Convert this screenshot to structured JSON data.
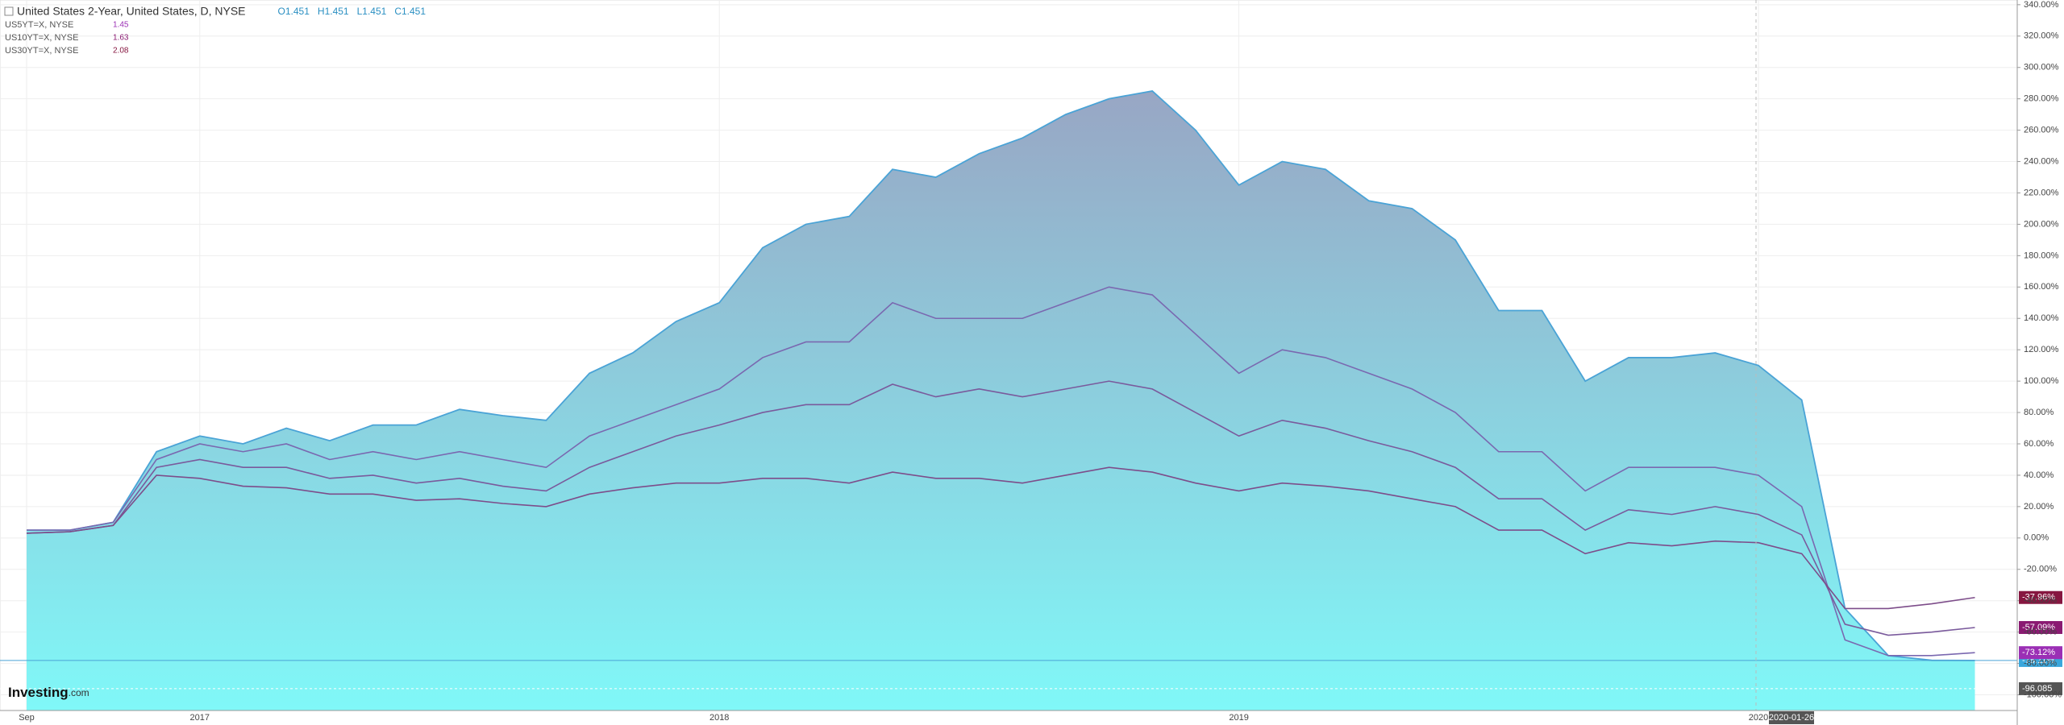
{
  "chart_data": {
    "type": "area-compare",
    "title": "United States 2-Year, United States, D, NYSE",
    "ohlc": [
      "O1.451",
      "H1.451",
      "L1.451",
      "C1.451"
    ],
    "brand": "Investing",
    "brand_suffix": ".com",
    "crosshair_label": "2020-01-26",
    "price_line": -96.085,
    "categories": [
      "Sep",
      null,
      null,
      null,
      "2017",
      null,
      null,
      null,
      null,
      null,
      null,
      null,
      null,
      null,
      null,
      null,
      "2018",
      null,
      null,
      null,
      null,
      null,
      null,
      null,
      null,
      null,
      null,
      null,
      "2019",
      null,
      null,
      null,
      null,
      null,
      null,
      null,
      null,
      null,
      null,
      null,
      "2020",
      null,
      null,
      null,
      null,
      null
    ],
    "series": [
      {
        "name": "United States 2-Year",
        "color": "#4aa3d6",
        "fill_top": "#98a6c4",
        "fill_bottom": "#80f8f8",
        "values": [
          5,
          5,
          10,
          55,
          65,
          60,
          70,
          62,
          72,
          72,
          82,
          78,
          75,
          105,
          118,
          138,
          150,
          185,
          200,
          205,
          235,
          230,
          245,
          255,
          270,
          280,
          285,
          260,
          225,
          240,
          235,
          215,
          210,
          190,
          145,
          145,
          100,
          115,
          115,
          118,
          110,
          88,
          -45,
          -75,
          -78,
          -78.11
        ],
        "value_labels": [
          null,
          null,
          null,
          null,
          null,
          null,
          null,
          null,
          null,
          null,
          null,
          null,
          null,
          null,
          null,
          null,
          null,
          null,
          null,
          null,
          null,
          null,
          null,
          null,
          null,
          null,
          null,
          null,
          null,
          null,
          null,
          null,
          null,
          null,
          null,
          null,
          null,
          null,
          null,
          null,
          null,
          null,
          null,
          null,
          null,
          "-78.11%"
        ]
      },
      {
        "name": "US5YT=X, NYSE",
        "legend_value": 1.45,
        "color": "#7a68b0",
        "label_color": "#9b2fb5",
        "values": [
          5,
          5,
          10,
          50,
          60,
          55,
          60,
          50,
          55,
          50,
          55,
          50,
          45,
          65,
          75,
          85,
          95,
          115,
          125,
          125,
          150,
          140,
          140,
          140,
          150,
          160,
          155,
          130,
          105,
          120,
          115,
          105,
          95,
          80,
          55,
          55,
          30,
          45,
          45,
          45,
          40,
          20,
          -65,
          -75,
          -75,
          -73.12
        ],
        "value_labels": [
          null,
          null,
          null,
          null,
          null,
          null,
          null,
          null,
          null,
          null,
          null,
          null,
          null,
          null,
          null,
          null,
          null,
          null,
          null,
          null,
          null,
          null,
          null,
          null,
          null,
          null,
          null,
          null,
          null,
          null,
          null,
          null,
          null,
          null,
          null,
          null,
          null,
          null,
          null,
          null,
          null,
          null,
          null,
          null,
          null,
          "-73.12%"
        ]
      },
      {
        "name": "US10YT=X, NYSE",
        "legend_value": 1.63,
        "color": "#7a5a9c",
        "label_color": "#8a1a72",
        "values": [
          3,
          4,
          8,
          45,
          50,
          45,
          45,
          38,
          40,
          35,
          38,
          33,
          30,
          45,
          55,
          65,
          72,
          80,
          85,
          85,
          98,
          90,
          95,
          90,
          95,
          100,
          95,
          80,
          65,
          75,
          70,
          62,
          55,
          45,
          25,
          25,
          5,
          18,
          15,
          20,
          15,
          2,
          -55,
          -62,
          -60,
          -57.09
        ],
        "value_labels": [
          null,
          null,
          null,
          null,
          null,
          null,
          null,
          null,
          null,
          null,
          null,
          null,
          null,
          null,
          null,
          null,
          null,
          null,
          null,
          null,
          null,
          null,
          null,
          null,
          null,
          null,
          null,
          null,
          null,
          null,
          null,
          null,
          null,
          null,
          null,
          null,
          null,
          null,
          null,
          null,
          null,
          null,
          null,
          null,
          null,
          "-57.09%"
        ]
      },
      {
        "name": "US30YT=X, NYSE",
        "legend_value": 2.08,
        "color": "#7d4d8a",
        "label_color": "#861640",
        "values": [
          3,
          4,
          8,
          40,
          38,
          33,
          32,
          28,
          28,
          24,
          25,
          22,
          20,
          28,
          32,
          35,
          35,
          38,
          38,
          35,
          42,
          38,
          38,
          35,
          40,
          45,
          42,
          35,
          30,
          35,
          33,
          30,
          25,
          20,
          5,
          5,
          -10,
          -3,
          -5,
          -2,
          -3,
          -10,
          -45,
          -45,
          -42,
          -37.96
        ],
        "value_labels": [
          null,
          null,
          null,
          null,
          null,
          null,
          null,
          null,
          null,
          null,
          null,
          null,
          null,
          null,
          null,
          null,
          null,
          null,
          null,
          null,
          null,
          null,
          null,
          null,
          null,
          null,
          null,
          null,
          null,
          null,
          null,
          null,
          null,
          null,
          null,
          null,
          null,
          null,
          null,
          null,
          null,
          null,
          null,
          null,
          null,
          "-37.96%"
        ]
      }
    ],
    "ylim": [
      -110,
      343
    ],
    "yticks": [
      {
        "value": -100,
        "label": "-100.00%"
      },
      {
        "value": -80,
        "label": "-80.00%"
      },
      {
        "value": -60,
        "label": "-60.00%"
      },
      {
        "value": -40,
        "label": "-40.00%"
      },
      {
        "value": -20,
        "label": "-20.00%"
      },
      {
        "value": 0,
        "label": "0.00%"
      },
      {
        "value": 20,
        "label": "20.00%"
      },
      {
        "value": 40,
        "label": "40.00%"
      },
      {
        "value": 60,
        "label": "60.00%"
      },
      {
        "value": 80,
        "label": "80.00%"
      },
      {
        "value": 100,
        "label": "100.00%"
      },
      {
        "value": 120,
        "label": "120.00%"
      },
      {
        "value": 140,
        "label": "140.00%"
      },
      {
        "value": 160,
        "label": "160.00%"
      },
      {
        "value": 180,
        "label": "180.00%"
      },
      {
        "value": 200,
        "label": "200.00%"
      },
      {
        "value": 220,
        "label": "220.00%"
      },
      {
        "value": 240,
        "label": "240.00%"
      },
      {
        "value": 260,
        "label": "260.00%"
      },
      {
        "value": 280,
        "label": "280.00%"
      },
      {
        "value": 300,
        "label": "300.00%"
      },
      {
        "value": 320,
        "label": "320.00%"
      },
      {
        "value": 340,
        "label": "340.00%"
      }
    ],
    "grid": true
  }
}
